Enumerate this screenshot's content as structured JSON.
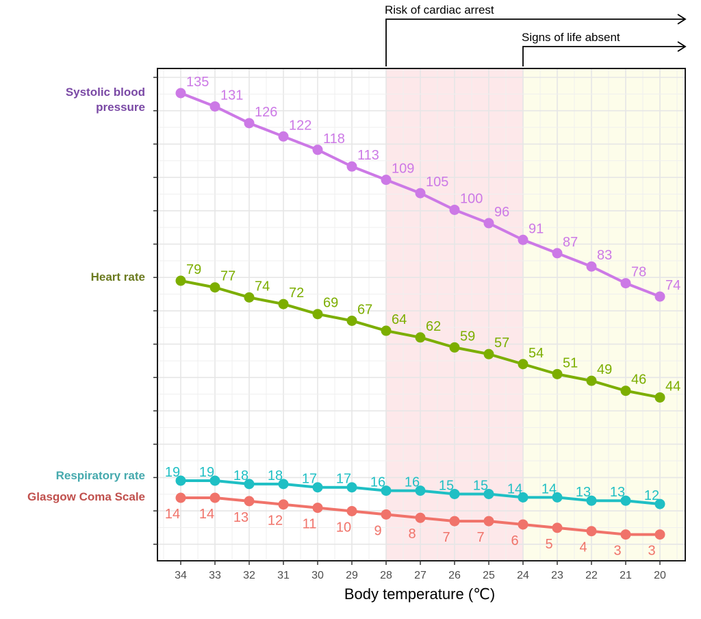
{
  "chart_data": {
    "type": "line",
    "xlabel": "Body temperature (℃)",
    "x": [
      34,
      33,
      32,
      31,
      30,
      29,
      28,
      27,
      26,
      25,
      24,
      23,
      22,
      21,
      20
    ],
    "x_direction": "reversed",
    "grid": true,
    "series": [
      {
        "name": "Systolic blood pressure",
        "color": "#cc79e6",
        "label_color": "#7a49a5",
        "values": [
          135,
          131,
          126,
          122,
          118,
          113,
          109,
          105,
          100,
          96,
          91,
          87,
          83,
          78,
          74
        ]
      },
      {
        "name": "Heart rate",
        "color": "#7cae00",
        "label_color": "#6b7a1f",
        "values": [
          79,
          77,
          74,
          72,
          69,
          67,
          64,
          62,
          59,
          57,
          54,
          51,
          49,
          46,
          44
        ]
      },
      {
        "name": "Respiratory rate",
        "color": "#1fbfc4",
        "label_color": "#45a9ad",
        "values": [
          19,
          19,
          18,
          18,
          17,
          17,
          16,
          16,
          15,
          15,
          14,
          14,
          13,
          13,
          12
        ]
      },
      {
        "name": "Glasgow Coma Scale",
        "color": "#f0736a",
        "label_color": "#c0504d",
        "values": [
          14,
          14,
          13,
          12,
          11,
          10,
          9,
          8,
          7,
          7,
          6,
          5,
          4,
          3,
          3
        ]
      }
    ],
    "regions": [
      {
        "label": "Risk of cardiac arrest",
        "from": 28,
        "to": 24,
        "color": "#fde8ea"
      },
      {
        "label": "Signs of life absent",
        "from": 24,
        "to": 19.3,
        "color": "#fdfdea"
      }
    ],
    "annotations": [
      {
        "label": "Risk of cardiac arrest",
        "start": 28
      },
      {
        "label": "Signs of life absent",
        "start": 24
      }
    ]
  }
}
